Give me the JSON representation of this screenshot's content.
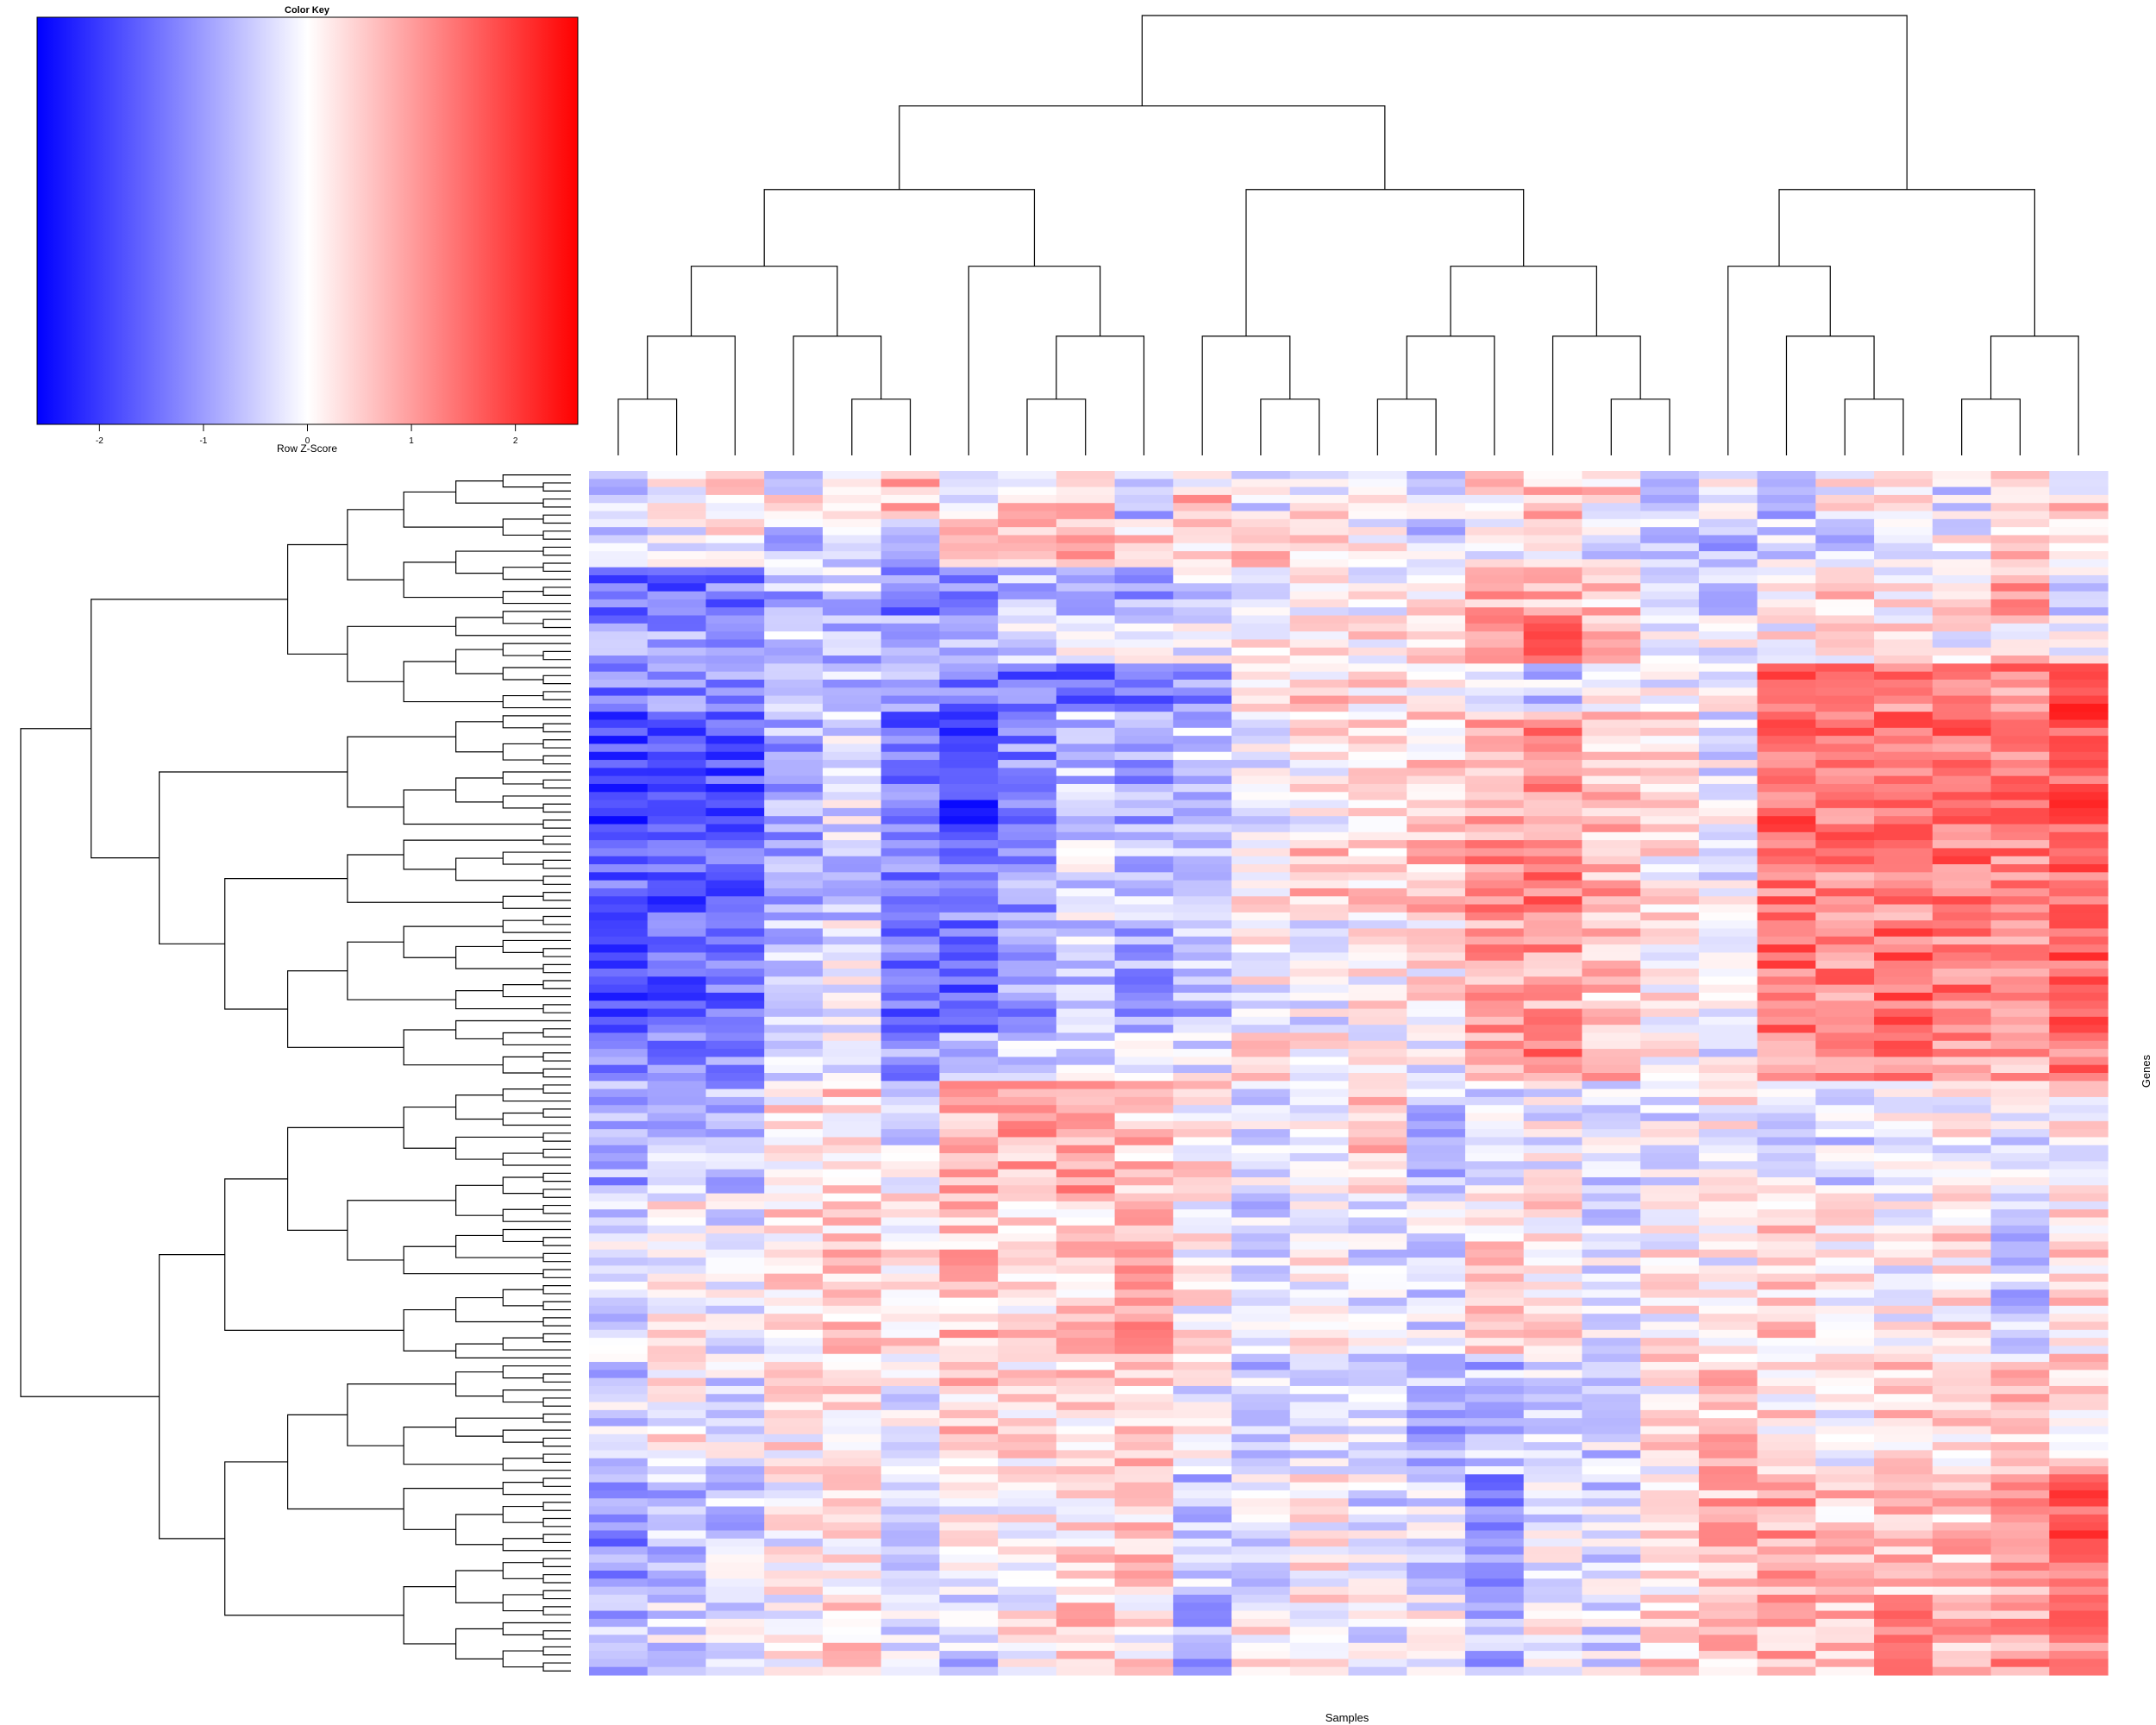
{
  "chart_data": {
    "type": "heatmap",
    "key_title": "Color Key",
    "key_label": "Row Z-Score",
    "key_ticks": [
      -2,
      -1,
      0,
      1,
      2
    ],
    "key_range": [
      -2.6,
      2.6
    ],
    "colors": {
      "low": "#0000ff",
      "mid": "#ffffff",
      "high": "#ff0000"
    },
    "xlabel": "Samples",
    "ylabel": "Genes",
    "n_columns": 26,
    "n_rows": 150,
    "column_dendrogram": true,
    "row_dendrogram": true,
    "column_blocks": [
      [
        1,
        3,
        [
          -0.5,
          0.1,
          0.8,
          -0.2,
          0.5,
          0.9,
          -0.7,
          0.2,
          0.1,
          -0.6,
          0.3,
          -0.1,
          0.1,
          -0.4,
          -0.2,
          0.3,
          0.5,
          0.4,
          -0.3,
          0.2,
          -0.6,
          0.1,
          0.3,
          -0.4,
          0.6,
          0.2
        ]
      ],
      [
        4,
        6,
        [
          -0.4,
          0.0,
          0.4,
          0.3,
          0.2,
          0.6,
          -0.3,
          0.6,
          0.5,
          -0.9,
          0.7,
          -0.2,
          0.2,
          0.0,
          -0.3,
          0.4,
          0.6,
          0.2,
          -0.6,
          0.1,
          -0.7,
          0.3,
          0.4,
          -0.3,
          0.8,
          0.4
        ]
      ],
      [
        7,
        12,
        [
          -0.6,
          -0.3,
          0.1,
          -0.6,
          -0.4,
          -0.5,
          0.6,
          0.8,
          0.7,
          0.4,
          0.3,
          0.5,
          0.2,
          0.0,
          -0.5,
          -0.2,
          0.1,
          -0.3,
          -0.6,
          -0.7,
          -0.4,
          -0.5,
          -0.2,
          -0.1,
          0.5,
          0.2
        ]
      ],
      [
        13,
        18,
        [
          -1.6,
          -1.5,
          -1.4,
          -0.8,
          -0.5,
          -1.3,
          -1.2,
          -0.8,
          -0.5,
          -1.0,
          -0.4,
          -0.3,
          0.2,
          0.1,
          0.4,
          0.9,
          0.8,
          0.6,
          -0.3,
          -0.4,
          0.3,
          0.5,
          0.2,
          0.4,
          0.9,
          -0.3
        ]
      ],
      [
        19,
        24,
        [
          -1.0,
          -0.9,
          -0.8,
          -0.4,
          -0.7,
          -1.0,
          -0.8,
          -0.3,
          -0.2,
          -0.3,
          -0.1,
          0.1,
          0.1,
          0.2,
          0.5,
          1.2,
          1.3,
          0.6,
          -0.2,
          -0.1,
          0.1,
          0.3,
          0.2,
          0.0,
          0.3,
          0.2
        ]
      ],
      [
        25,
        30,
        [
          -1.3,
          -1.1,
          -1.1,
          -0.5,
          -0.6,
          -0.9,
          -1.4,
          -1.5,
          -1.4,
          -1.3,
          -1.1,
          0.2,
          0.4,
          0.3,
          0.2,
          -0.4,
          -0.5,
          0.3,
          -0.2,
          0.1,
          1.4,
          1.1,
          1.3,
          0.9,
          1.2,
          1.7
        ]
      ],
      [
        31,
        46,
        [
          -1.9,
          -1.7,
          -1.8,
          -0.9,
          -0.3,
          -1.5,
          -1.9,
          -1.2,
          -0.6,
          -1.0,
          -0.6,
          -0.1,
          0.1,
          0.3,
          0.4,
          0.9,
          1.1,
          0.7,
          0.3,
          -0.2,
          1.6,
          1.4,
          1.6,
          1.5,
          1.3,
          1.7
        ]
      ],
      [
        47,
        56,
        [
          -1.6,
          -1.7,
          -1.6,
          -0.8,
          -0.5,
          -1.4,
          -1.3,
          -1.0,
          -0.4,
          -0.6,
          -0.3,
          0.3,
          0.5,
          0.4,
          0.6,
          1.2,
          1.3,
          0.8,
          0.2,
          -0.1,
          1.3,
          1.1,
          1.2,
          1.4,
          1.3,
          1.5
        ]
      ],
      [
        57,
        70,
        [
          -1.8,
          -1.6,
          -1.5,
          -0.6,
          -0.2,
          -1.4,
          -1.5,
          -1.1,
          -0.5,
          -0.9,
          -0.7,
          0.0,
          -0.2,
          0.1,
          0.2,
          0.9,
          1.0,
          0.5,
          0.2,
          -0.3,
          1.5,
          1.2,
          1.5,
          1.3,
          1.1,
          1.6
        ]
      ],
      [
        71,
        76,
        [
          -1.4,
          -1.2,
          -1.3,
          -0.4,
          -0.3,
          -1.0,
          -0.9,
          -0.6,
          -0.2,
          -0.5,
          -0.2,
          0.2,
          0.3,
          -0.1,
          -0.2,
          1.0,
          1.2,
          0.6,
          0.0,
          -0.2,
          1.1,
          0.9,
          1.3,
          1.1,
          0.8,
          1.4
        ]
      ],
      [
        77,
        90,
        [
          -0.9,
          -0.7,
          -0.8,
          0.2,
          0.4,
          -0.3,
          0.7,
          0.8,
          0.9,
          0.6,
          0.2,
          -0.2,
          -0.1,
          0.6,
          -0.6,
          -0.3,
          -0.1,
          -0.4,
          -0.2,
          0.1,
          -0.2,
          -0.4,
          -0.1,
          0.0,
          -0.3,
          0.1
        ]
      ],
      [
        91,
        110,
        [
          -0.3,
          0.1,
          -0.2,
          0.3,
          0.5,
          0.3,
          0.6,
          0.4,
          0.5,
          0.9,
          0.1,
          -0.4,
          0.0,
          -0.3,
          -0.4,
          0.3,
          0.2,
          -0.3,
          0.1,
          0.0,
          0.5,
          0.2,
          0.0,
          0.3,
          -0.6,
          0.3
        ]
      ],
      [
        111,
        125,
        [
          -0.5,
          0.1,
          -0.3,
          0.2,
          0.4,
          -0.1,
          0.5,
          0.3,
          0.4,
          0.6,
          -0.1,
          -0.5,
          -0.2,
          -0.5,
          -0.8,
          -0.7,
          -0.3,
          -0.4,
          0.2,
          0.6,
          0.3,
          0.1,
          0.4,
          0.3,
          0.5,
          0.4
        ]
      ],
      [
        126,
        140,
        [
          -1.1,
          -0.7,
          -0.5,
          0.0,
          0.3,
          -0.3,
          0.0,
          0.2,
          0.3,
          0.5,
          -0.6,
          -0.4,
          0.1,
          -0.3,
          -0.4,
          -1.3,
          -0.2,
          -0.4,
          0.3,
          0.8,
          0.9,
          0.5,
          0.7,
          0.6,
          0.9,
          1.6
        ]
      ],
      [
        141,
        150,
        [
          -0.8,
          -0.4,
          -0.3,
          0.0,
          0.3,
          -0.2,
          -0.6,
          0.1,
          0.6,
          0.2,
          -0.9,
          0.1,
          0.2,
          -0.2,
          -0.1,
          -0.8,
          0.0,
          -0.3,
          0.4,
          0.5,
          0.8,
          0.6,
          1.1,
          0.8,
          1.0,
          1.4
        ]
      ]
    ]
  }
}
